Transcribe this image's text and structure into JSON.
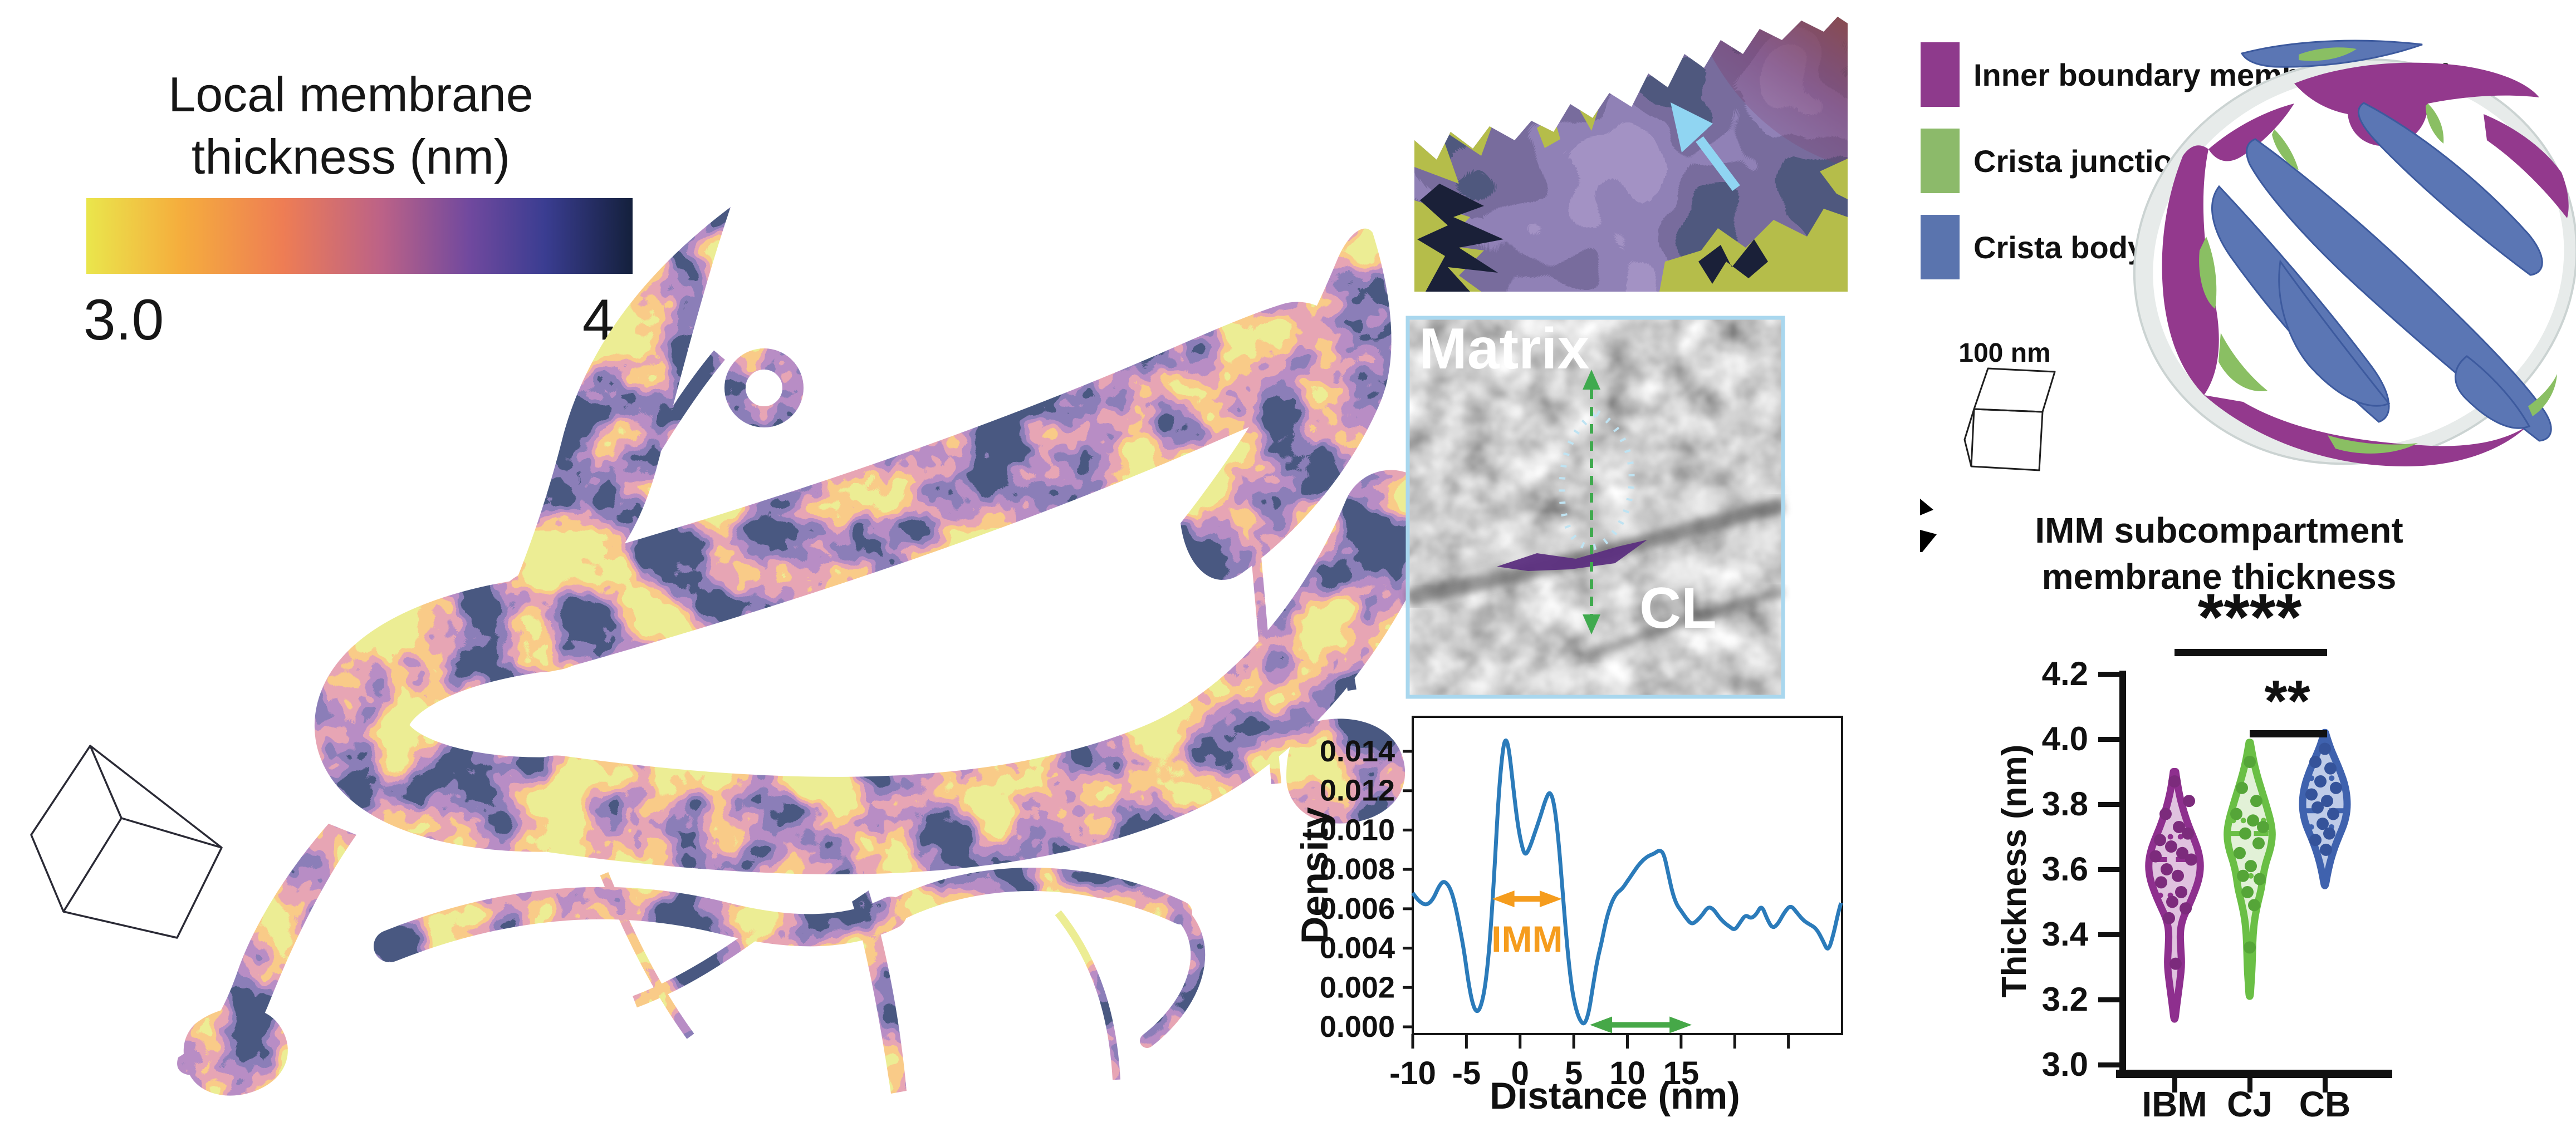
{
  "colorbar": {
    "title_line1": "Local membrane",
    "title_line2": "thickness (nm)",
    "min_label": "3.0",
    "max_label": "4.0",
    "gradient": [
      "#EAE64C",
      "#F5AE3D",
      "#EE7D54",
      "#BC6287",
      "#71499E",
      "#3A3D91",
      "#14203C"
    ]
  },
  "legend": {
    "items": [
      {
        "label": "Inner boundary membrane (IBM)",
        "color": "#8E3A8C"
      },
      {
        "label": "Crista junction (CJ)",
        "color": "#8CBA6A"
      },
      {
        "label": "Crista body (CB)",
        "color": "#5A74AE"
      }
    ]
  },
  "scale_cubes": {
    "right_cube_label": "100 nm"
  },
  "mesh_panel": {
    "arrow_color": "#90D5F2"
  },
  "em_panel": {
    "label_top": "Matrix",
    "label_bottom": "CL",
    "border_color": "#A9D7EE",
    "dashed_line_color": "#3FAA4E",
    "dotted_outline_color": "#BFE3F2",
    "membrane_sliver_color": "#5C2F80"
  },
  "chart_data": [
    {
      "id": "density_profile",
      "type": "line",
      "xlabel": "Distance (nm)",
      "ylabel": "Density",
      "xlim": [
        -10,
        30
      ],
      "ylim": [
        0,
        0.015
      ],
      "grid": false,
      "line_color": "#2B7BBA",
      "xticks_labeled": [
        -10,
        -5,
        0,
        5,
        10,
        15
      ],
      "xticks_unlabeled": [
        20,
        25
      ],
      "yticks": [
        "0.000",
        "0.002",
        "0.004",
        "0.006",
        "0.008",
        "0.010",
        "0.012",
        "0.014"
      ],
      "series": [
        [
          -10,
          0.0068
        ],
        [
          -9.6,
          0.0065
        ],
        [
          -9.2,
          0.0063
        ],
        [
          -8.8,
          0.0062
        ],
        [
          -8.4,
          0.0063
        ],
        [
          -8,
          0.0066
        ],
        [
          -7.6,
          0.0071
        ],
        [
          -7.2,
          0.0074
        ],
        [
          -6.8,
          0.0073
        ],
        [
          -6.4,
          0.0069
        ],
        [
          -6,
          0.0061
        ],
        [
          -5.6,
          0.005
        ],
        [
          -5.2,
          0.0038
        ],
        [
          -4.8,
          0.0022
        ],
        [
          -4.4,
          0.0011
        ],
        [
          -4,
          0.0007
        ],
        [
          -3.6,
          0.0011
        ],
        [
          -3.2,
          0.0022
        ],
        [
          -2.8,
          0.0044
        ],
        [
          -2.4,
          0.0078
        ],
        [
          -2,
          0.0118
        ],
        [
          -1.6,
          0.0142
        ],
        [
          -1.3,
          0.0147
        ],
        [
          -1,
          0.014
        ],
        [
          -0.6,
          0.012
        ],
        [
          -0.2,
          0.0102
        ],
        [
          0.2,
          0.0091
        ],
        [
          0.5,
          0.0087
        ],
        [
          0.9,
          0.0091
        ],
        [
          1.4,
          0.0099
        ],
        [
          1.9,
          0.0107
        ],
        [
          2.4,
          0.0116
        ],
        [
          2.8,
          0.012
        ],
        [
          3.2,
          0.0113
        ],
        [
          3.6,
          0.0094
        ],
        [
          4,
          0.0066
        ],
        [
          4.4,
          0.004
        ],
        [
          4.8,
          0.002
        ],
        [
          5.2,
          0.0009
        ],
        [
          5.6,
          0.0003
        ],
        [
          6,
          0.0001
        ],
        [
          6.4,
          0.0007
        ],
        [
          6.8,
          0.0021
        ],
        [
          7.2,
          0.0034
        ],
        [
          7.6,
          0.0043
        ],
        [
          8,
          0.0054
        ],
        [
          8.5,
          0.0063
        ],
        [
          9,
          0.0068
        ],
        [
          9.5,
          0.007
        ],
        [
          10,
          0.0074
        ],
        [
          10.5,
          0.0078
        ],
        [
          11,
          0.0082
        ],
        [
          11.5,
          0.0085
        ],
        [
          12,
          0.0087
        ],
        [
          12.5,
          0.0088
        ],
        [
          13,
          0.009
        ],
        [
          13.4,
          0.0088
        ],
        [
          13.8,
          0.0078
        ],
        [
          14.2,
          0.0068
        ],
        [
          14.6,
          0.0062
        ],
        [
          15,
          0.0059
        ],
        [
          15.5,
          0.0055
        ],
        [
          16,
          0.0052
        ],
        [
          16.5,
          0.0054
        ],
        [
          17,
          0.0057
        ],
        [
          17.5,
          0.0061
        ],
        [
          18,
          0.006
        ],
        [
          18.5,
          0.0056
        ],
        [
          19,
          0.0053
        ],
        [
          19.5,
          0.0051
        ],
        [
          20,
          0.0049
        ],
        [
          20.5,
          0.0053
        ],
        [
          21,
          0.0057
        ],
        [
          21.5,
          0.0055
        ],
        [
          22,
          0.0057
        ],
        [
          22.5,
          0.0062
        ],
        [
          23,
          0.0055
        ],
        [
          23.5,
          0.005
        ],
        [
          24,
          0.0052
        ],
        [
          24.6,
          0.0058
        ],
        [
          25.2,
          0.0062
        ],
        [
          25.8,
          0.0058
        ],
        [
          26.4,
          0.0054
        ],
        [
          27,
          0.0052
        ],
        [
          27.6,
          0.005
        ],
        [
          28.2,
          0.0044
        ],
        [
          28.7,
          0.0038
        ],
        [
          29.2,
          0.0047
        ],
        [
          29.6,
          0.0057
        ],
        [
          29.9,
          0.0063
        ]
      ],
      "annotations": [
        {
          "name": "imm-width-arrow",
          "label": "IMM",
          "color": "#F59C1D",
          "x_start": -2.6,
          "x_end": 3.9,
          "y": 0.0065
        },
        {
          "name": "matrix-span-arrow",
          "label": "",
          "color": "#46A848",
          "x_start": 6.5,
          "x_end": 16,
          "y": 0.0001
        }
      ]
    },
    {
      "id": "imm_thickness_violin",
      "type": "violin",
      "title_line1": "IMM subcompartment",
      "title_line2": "membrane thickness",
      "ylabel": "Thickness (nm)",
      "ylim": [
        3.0,
        4.2
      ],
      "yticks": [
        "3.0",
        "3.2",
        "3.4",
        "3.6",
        "3.8",
        "4.0",
        "4.2"
      ],
      "groups": [
        {
          "label": "IBM",
          "line_color": "#8E2F8E",
          "fill_color": "#E0C2DF",
          "dot_color": "#7C2B7C",
          "min": 3.14,
          "max": 3.9,
          "median": 3.63,
          "q1": 3.52,
          "q3": 3.7,
          "profile": [
            [
              3.9,
              2
            ],
            [
              3.84,
              7
            ],
            [
              3.78,
              16
            ],
            [
              3.73,
              26
            ],
            [
              3.69,
              36
            ],
            [
              3.65,
              44
            ],
            [
              3.61,
              47
            ],
            [
              3.57,
              44
            ],
            [
              3.53,
              36
            ],
            [
              3.49,
              26
            ],
            [
              3.45,
              15
            ],
            [
              3.41,
              10
            ],
            [
              3.36,
              11
            ],
            [
              3.31,
              13
            ],
            [
              3.26,
              10
            ],
            [
              3.21,
              6
            ],
            [
              3.17,
              3
            ],
            [
              3.14,
              1
            ]
          ],
          "points": [
            [
              0,
              3.87
            ],
            [
              26,
              3.81
            ],
            [
              -16,
              3.77
            ],
            [
              8,
              3.73
            ],
            [
              24,
              3.71
            ],
            [
              -26,
              3.69
            ],
            [
              -6,
              3.67
            ],
            [
              14,
              3.65
            ],
            [
              -34,
              3.64
            ],
            [
              30,
              3.63
            ],
            [
              -14,
              3.6
            ],
            [
              6,
              3.58
            ],
            [
              -24,
              3.56
            ],
            [
              12,
              3.53
            ],
            [
              -4,
              3.5
            ],
            [
              20,
              3.48
            ],
            [
              -10,
              3.45
            ],
            [
              2,
              3.31
            ]
          ]
        },
        {
          "label": "CJ",
          "line_color": "#6ABF45",
          "fill_color": "#E2F1D7",
          "dot_color": "#55A538",
          "min": 3.21,
          "max": 3.99,
          "median": 3.71,
          "q1": 3.58,
          "q3": 3.75,
          "profile": [
            [
              3.99,
              1
            ],
            [
              3.94,
              6
            ],
            [
              3.89,
              13
            ],
            [
              3.84,
              22
            ],
            [
              3.79,
              31
            ],
            [
              3.74,
              39
            ],
            [
              3.7,
              41
            ],
            [
              3.66,
              37
            ],
            [
              3.62,
              29
            ],
            [
              3.58,
              24
            ],
            [
              3.54,
              21
            ],
            [
              3.5,
              15
            ],
            [
              3.45,
              9
            ],
            [
              3.4,
              6
            ],
            [
              3.35,
              5
            ],
            [
              3.29,
              4
            ],
            [
              3.24,
              2
            ],
            [
              3.21,
              1
            ]
          ],
          "points": [
            [
              0,
              3.93
            ],
            [
              -14,
              3.85
            ],
            [
              12,
              3.81
            ],
            [
              -24,
              3.77
            ],
            [
              6,
              3.75
            ],
            [
              24,
              3.73
            ],
            [
              -8,
              3.71
            ],
            [
              16,
              3.68
            ],
            [
              -18,
              3.65
            ],
            [
              2,
              3.61
            ],
            [
              -12,
              3.58
            ],
            [
              18,
              3.57
            ],
            [
              -4,
              3.53
            ],
            [
              8,
              3.49
            ],
            [
              0,
              3.36
            ]
          ]
        },
        {
          "label": "CB",
          "line_color": "#3F62AE",
          "fill_color": "#BFCCE8",
          "dot_color": "#35539A",
          "min": 3.55,
          "max": 4.02,
          "median": 3.78,
          "q1": 3.73,
          "q3": 3.88,
          "profile": [
            [
              4.02,
              1
            ],
            [
              3.98,
              8
            ],
            [
              3.94,
              18
            ],
            [
              3.9,
              28
            ],
            [
              3.86,
              36
            ],
            [
              3.82,
              40
            ],
            [
              3.78,
              40
            ],
            [
              3.74,
              35
            ],
            [
              3.7,
              25
            ],
            [
              3.66,
              16
            ],
            [
              3.62,
              9
            ],
            [
              3.58,
              4
            ],
            [
              3.55,
              1
            ]
          ],
          "points": [
            [
              0,
              3.97
            ],
            [
              -17,
              3.93
            ],
            [
              10,
              3.91
            ],
            [
              -8,
              3.87
            ],
            [
              20,
              3.85
            ],
            [
              -24,
              3.83
            ],
            [
              4,
              3.81
            ],
            [
              -13,
              3.79
            ],
            [
              15,
              3.77
            ],
            [
              -4,
              3.74
            ],
            [
              8,
              3.71
            ],
            [
              -17,
              3.69
            ],
            [
              2,
              3.66
            ]
          ]
        }
      ],
      "significance": [
        {
          "from": "IBM",
          "to": "CB",
          "label": "****"
        },
        {
          "from": "CJ",
          "to": "CB",
          "label": "**"
        }
      ]
    }
  ]
}
